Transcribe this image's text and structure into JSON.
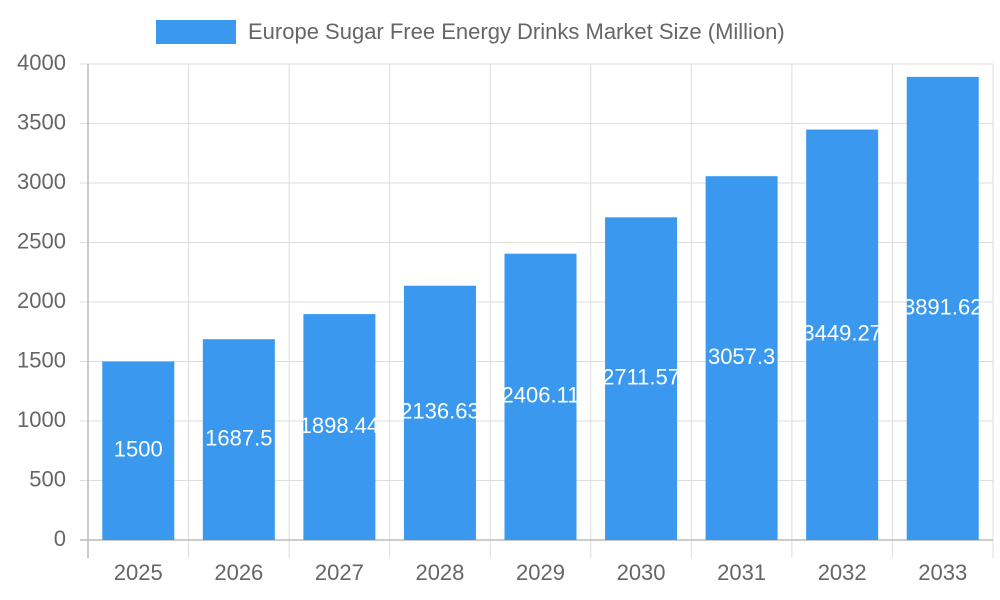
{
  "chart_data": {
    "type": "bar",
    "legend": "Europe Sugar Free Energy Drinks Market Size (Million)",
    "categories": [
      "2025",
      "2026",
      "2027",
      "2028",
      "2029",
      "2030",
      "2031",
      "2032",
      "2033"
    ],
    "series": [
      {
        "name": "Europe Sugar Free Energy Drinks Market Size (Million)",
        "color": "#3a99ee",
        "values": [
          1500,
          1687.5,
          1898.44,
          2136.63,
          2406.11,
          2711.57,
          3057.3,
          3449.27,
          3891.62
        ]
      }
    ],
    "ylim": [
      0,
      4000
    ],
    "yticks": [
      0,
      500,
      1000,
      1500,
      2000,
      2500,
      3000,
      3500,
      4000
    ],
    "grid": true
  }
}
